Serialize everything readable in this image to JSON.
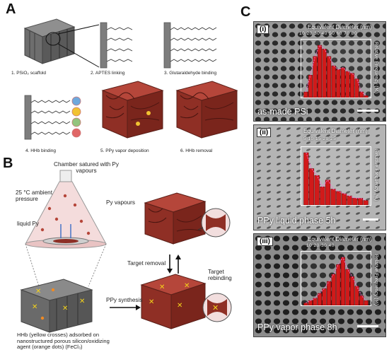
{
  "panel_a": {
    "label": "A",
    "steps": [
      "1. PSiO₂ scaffold",
      "2. APTES linking",
      "3. Glutaraldehyde binding",
      "4. HHb binding",
      "5. PPy vapor deposition",
      "6. HHb removal"
    ]
  },
  "panel_b": {
    "label": "B",
    "chamber": "Chamber satured with Py vapours",
    "conditions": "25 °C ambient pressure",
    "py_vapours": "Py vapours",
    "liquid_py": "liquid Py",
    "target_removal": "Target removal",
    "target_rebinding": "Target rebinding",
    "ppy_synthesis": "PPy synthesis",
    "hhb_note": "HHb (yellow crosses) adsorbed on nanostructured porous silicon/oxidizing agent (orange dots) (FeCl₃)"
  },
  "panel_c": {
    "label": "C",
    "images": [
      {
        "roman": "(i)",
        "caption": "as-made PSi",
        "hist_title": "Equivalent Diameter (nm)",
        "ticks": "10  20  30  40  50  60  70  80",
        "ylabel": "Relative Frequency (%)",
        "chart_data": {
          "type": "bar",
          "x": [
            15,
            20,
            25,
            30,
            35,
            40,
            45,
            50,
            55,
            60,
            65,
            70,
            75,
            80
          ],
          "values": [
            3,
            12,
            22,
            28,
            26,
            22,
            17,
            15,
            16,
            14,
            13,
            10,
            3,
            1
          ]
        }
      },
      {
        "roman": "(ii)",
        "caption": "PPy liquid phase 5h",
        "hist_title": "Equivalent Diameter (nm)",
        "ticks": "5   10   15   20   25",
        "ylabel": "Relative Frequency (%)",
        "chart_data": {
          "type": "bar",
          "x": [
            4,
            6,
            8,
            10,
            12,
            14,
            16,
            18,
            20,
            22,
            24,
            26
          ],
          "values": [
            23,
            16,
            13,
            8,
            11,
            7,
            6,
            5,
            4,
            3,
            3,
            2
          ]
        }
      },
      {
        "roman": "(iii)",
        "caption": "PPy vapor phase 8h",
        "hist_title": "Equivalent Diameter (nm)",
        "ticks": "10    20    30    40",
        "ylabel": "Relative Frequency (%)",
        "chart_data": {
          "type": "bar",
          "x": [
            8,
            11,
            14,
            17,
            20,
            23,
            26,
            29,
            32,
            35,
            38,
            41,
            44,
            47
          ],
          "values": [
            1,
            2,
            3,
            5,
            7,
            10,
            13,
            17,
            20,
            15,
            12,
            8,
            4,
            2
          ]
        }
      }
    ]
  }
}
